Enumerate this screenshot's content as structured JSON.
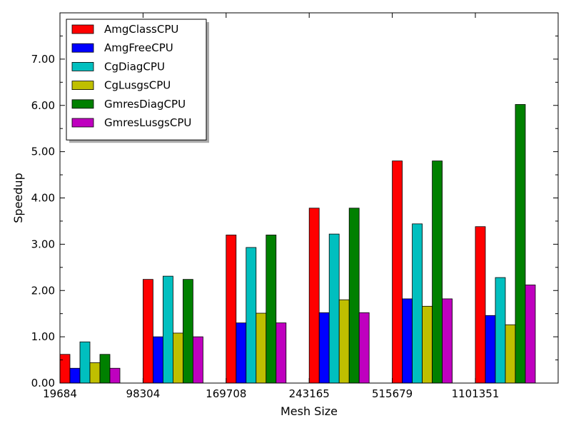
{
  "chart_data": {
    "type": "bar",
    "title": "",
    "xlabel": "Mesh Size",
    "ylabel": "Speedup",
    "categories": [
      "19684",
      "98304",
      "169708",
      "243165",
      "515679",
      "1101351"
    ],
    "ylim": [
      0,
      8
    ],
    "yticks": [
      "0.00",
      "1.00",
      "2.00",
      "3.00",
      "4.00",
      "5.00",
      "6.00",
      "7.00"
    ],
    "legend_position": "top-left",
    "grid": false,
    "series": [
      {
        "name": "AmgClassCPU",
        "color": "#ff0000",
        "values": [
          0.62,
          2.24,
          3.2,
          3.78,
          4.8,
          3.38
        ]
      },
      {
        "name": "AmgFreeCPU",
        "color": "#0000ff",
        "values": [
          0.32,
          1.0,
          1.3,
          1.52,
          1.82,
          1.46
        ]
      },
      {
        "name": "CgDiagCPU",
        "color": "#00bfbf",
        "values": [
          0.89,
          2.31,
          2.93,
          3.22,
          3.44,
          2.28
        ]
      },
      {
        "name": "CgLusgsCPU",
        "color": "#bfbf00",
        "values": [
          0.44,
          1.08,
          1.51,
          1.8,
          1.66,
          1.26
        ]
      },
      {
        "name": "GmresDiagCPU",
        "color": "#008000",
        "values": [
          0.62,
          2.24,
          3.2,
          3.78,
          4.8,
          6.02
        ]
      },
      {
        "name": "GmresLusgsCPU",
        "color": "#bf00bf",
        "values": [
          0.32,
          1.0,
          1.3,
          1.52,
          1.82,
          2.12
        ]
      }
    ]
  }
}
